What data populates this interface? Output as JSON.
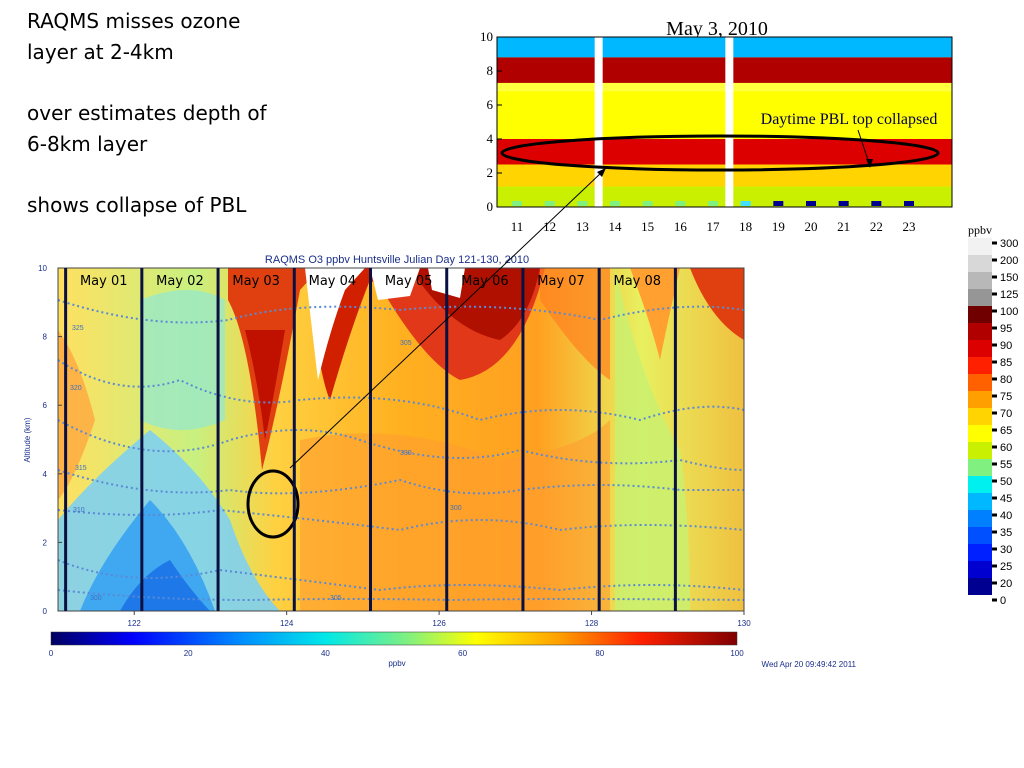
{
  "notes": {
    "line1a": "RAQMS misses ozone",
    "line1b": "layer at 2-4km",
    "line2a": "over estimates depth of",
    "line2b": "6-8km layer",
    "line3": "shows  collapse of PBL"
  },
  "chart_data": [
    {
      "type": "heatmap",
      "title": "May 3, 2010",
      "x_ticks": [
        "11",
        "12",
        "13",
        "14",
        "15",
        "16",
        "17",
        "18",
        "19",
        "20",
        "21",
        "22",
        "23"
      ],
      "y_ticks": [
        "0",
        "2",
        "4",
        "6",
        "8",
        "10"
      ],
      "ylim": [
        0,
        10
      ],
      "annotation": "Daytime PBL top collapsed",
      "layers": [
        {
          "alt_range": [
            7.3,
            8.8
          ],
          "ppbv": 95
        },
        {
          "alt_range": [
            2.5,
            4.0
          ],
          "ppbv": 90
        },
        {
          "alt_range": [
            1.2,
            2.5
          ],
          "ppbv": 70
        },
        {
          "alt_range": [
            4.0,
            6.8
          ],
          "ppbv": 68
        },
        {
          "alt_range": [
            8.8,
            10.0
          ],
          "ppbv": 45
        }
      ]
    },
    {
      "type": "heatmap",
      "title": "RAQMS O3 ppbv Huntsville Julian Day 121-130, 2010",
      "ylabel": "Altitude (km)",
      "xlabel": "ppbv",
      "xlim": [
        121,
        130
      ],
      "ylim": [
        0,
        10
      ],
      "x_ticks": [
        "122",
        "124",
        "126",
        "128",
        "130"
      ],
      "y_ticks": [
        "0",
        "2",
        "4",
        "6",
        "8",
        "10"
      ],
      "day_labels": [
        "May 01",
        "May 02",
        "May 03",
        "May 04",
        "May 05",
        "May 06",
        "May 07",
        "May 08"
      ],
      "contour_labels": [
        "300",
        "305",
        "310",
        "315",
        "320",
        "325",
        "330"
      ],
      "colorbar_ticks": [
        "0",
        "20",
        "40",
        "60",
        "80",
        "100"
      ],
      "timestamp": "Wed Apr 20 09:49:42 2011"
    }
  ],
  "legend": {
    "title": "ppbv",
    "items": [
      {
        "label": "300",
        "color": "#f2f2f2"
      },
      {
        "label": "200",
        "color": "#d8d8d8"
      },
      {
        "label": "150",
        "color": "#b8b8b8"
      },
      {
        "label": "125",
        "color": "#969696"
      },
      {
        "label": "100",
        "color": "#700000"
      },
      {
        "label": "95",
        "color": "#b00000"
      },
      {
        "label": "90",
        "color": "#dd0000"
      },
      {
        "label": "85",
        "color": "#ff2000"
      },
      {
        "label": "80",
        "color": "#ff6000"
      },
      {
        "label": "75",
        "color": "#ffa000"
      },
      {
        "label": "70",
        "color": "#ffd400"
      },
      {
        "label": "65",
        "color": "#ffff00"
      },
      {
        "label": "60",
        "color": "#c8f000"
      },
      {
        "label": "55",
        "color": "#80f080"
      },
      {
        "label": "50",
        "color": "#00f0f0"
      },
      {
        "label": "45",
        "color": "#00b8ff"
      },
      {
        "label": "40",
        "color": "#0080ff"
      },
      {
        "label": "35",
        "color": "#0050ff"
      },
      {
        "label": "30",
        "color": "#0020ff"
      },
      {
        "label": "25",
        "color": "#0000d0"
      },
      {
        "label": "20",
        "color": "#000090"
      },
      {
        "label": "0",
        "color": "#ffffff"
      }
    ]
  }
}
